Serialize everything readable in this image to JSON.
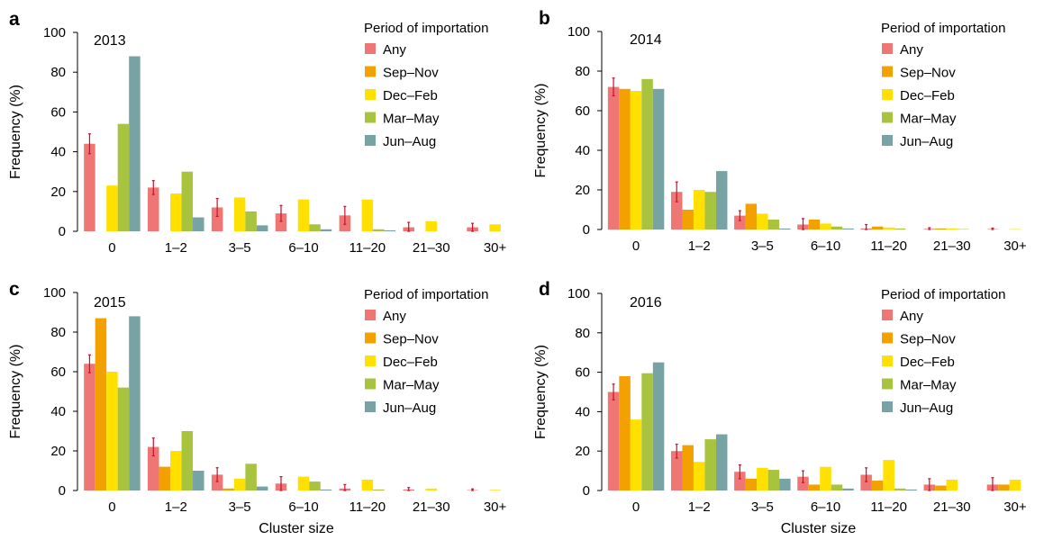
{
  "figure": {
    "shared": {
      "legend_title": "Period of importation",
      "series_names": [
        "Any",
        "Sep–Nov",
        "Dec–Feb",
        "Mar–May",
        "Jun–Aug"
      ],
      "series_colors": [
        "#ee7674",
        "#f2a100",
        "#ffe000",
        "#a8c43f",
        "#78a3a4"
      ],
      "error_color": "#c8102e",
      "ylabel": "Frequency (%)",
      "xlabel": "Cluster size",
      "categories": [
        "0",
        "1–2",
        "3–5",
        "6–10",
        "11–20",
        "21–30",
        "30+"
      ],
      "yticks": [
        "0",
        "20",
        "40",
        "60",
        "80",
        "100"
      ],
      "ylim": [
        0,
        100
      ]
    }
  },
  "chart_data": [
    {
      "type": "bar",
      "panel": "a",
      "year": "2013",
      "categories": [
        "0",
        "1–2",
        "3–5",
        "6–10",
        "11–20",
        "21–30",
        "30+"
      ],
      "ylabel": "Frequency (%)",
      "xlabel": "",
      "ylim": [
        0,
        100
      ],
      "legend_title": "Period of importation",
      "series": [
        {
          "name": "Any",
          "values": [
            44,
            22,
            12,
            9,
            8,
            2,
            2
          ],
          "error": [
            5,
            3.5,
            4.5,
            4,
            4.5,
            2.5,
            2
          ]
        },
        {
          "name": "Sep–Nov",
          "values": [
            0,
            0,
            0,
            0,
            0,
            0,
            0
          ]
        },
        {
          "name": "Dec–Feb",
          "values": [
            23,
            19,
            17,
            16,
            16,
            5,
            3.5
          ]
        },
        {
          "name": "Mar–May",
          "values": [
            54,
            30,
            10,
            3.5,
            1,
            0,
            0
          ]
        },
        {
          "name": "Jun–Aug",
          "values": [
            88,
            7,
            3,
            1,
            0.5,
            0,
            0
          ]
        }
      ]
    },
    {
      "type": "bar",
      "panel": "b",
      "year": "2014",
      "categories": [
        "0",
        "1–2",
        "3–5",
        "6–10",
        "11–20",
        "21–30",
        "30+"
      ],
      "ylabel": "Frequency (%)",
      "xlabel": "",
      "ylim": [
        0,
        100
      ],
      "legend_title": "Period of importation",
      "series": [
        {
          "name": "Any",
          "values": [
            72,
            19,
            7,
            2.5,
            0.5,
            0.3,
            0.2
          ],
          "error": [
            4.5,
            5,
            2.5,
            3,
            2,
            0.6,
            0.5
          ]
        },
        {
          "name": "Sep–Nov",
          "values": [
            71,
            10,
            13,
            5,
            1.5,
            0.5,
            0
          ]
        },
        {
          "name": "Dec–Feb",
          "values": [
            70,
            20,
            8,
            3,
            1,
            0.5,
            0.2
          ]
        },
        {
          "name": "Mar–May",
          "values": [
            76,
            19,
            5,
            1.5,
            0.5,
            0.2,
            0
          ]
        },
        {
          "name": "Jun–Aug",
          "values": [
            71,
            29.5,
            0.5,
            0.5,
            0,
            0,
            0
          ]
        }
      ]
    },
    {
      "type": "bar",
      "panel": "c",
      "year": "2015",
      "categories": [
        "0",
        "1–2",
        "3–5",
        "6–10",
        "11–20",
        "21–30",
        "30+"
      ],
      "ylabel": "Frequency (%)",
      "xlabel": "Cluster size",
      "ylim": [
        0,
        100
      ],
      "legend_title": "Period of importation",
      "series": [
        {
          "name": "Any",
          "values": [
            64,
            22,
            8,
            3.5,
            1,
            0.5,
            0.2
          ],
          "error": [
            4.5,
            4.5,
            3.5,
            3.5,
            2,
            1,
            0.6
          ]
        },
        {
          "name": "Sep–Nov",
          "values": [
            87,
            12,
            1,
            0,
            0,
            0,
            0
          ]
        },
        {
          "name": "Dec–Feb",
          "values": [
            60,
            20,
            6,
            7,
            5.5,
            1,
            0.3
          ]
        },
        {
          "name": "Mar–May",
          "values": [
            52,
            30,
            13.5,
            4.5,
            0.5,
            0,
            0
          ]
        },
        {
          "name": "Jun–Aug",
          "values": [
            88,
            10,
            2,
            0.5,
            0,
            0,
            0
          ]
        }
      ]
    },
    {
      "type": "bar",
      "panel": "d",
      "year": "2016",
      "categories": [
        "0",
        "1–2",
        "3–5",
        "6–10",
        "11–20",
        "21–30",
        "30+"
      ],
      "ylabel": "Frequency (%)",
      "xlabel": "Cluster size",
      "ylim": [
        0,
        100
      ],
      "legend_title": "Period of importation",
      "series": [
        {
          "name": "Any",
          "values": [
            50,
            20,
            9.5,
            7,
            8,
            3,
            3
          ],
          "error": [
            4,
            3.5,
            3.5,
            3,
            3.5,
            3,
            3.5
          ]
        },
        {
          "name": "Sep–Nov",
          "values": [
            58,
            23,
            6,
            3,
            5,
            2.5,
            3
          ]
        },
        {
          "name": "Dec–Feb",
          "values": [
            36,
            14.5,
            11.5,
            12,
            15.5,
            5.5,
            5.5
          ]
        },
        {
          "name": "Mar–May",
          "values": [
            59.5,
            26,
            10.5,
            3,
            1,
            0,
            0
          ]
        },
        {
          "name": "Jun–Aug",
          "values": [
            65,
            28.5,
            6,
            1,
            0.5,
            0,
            0
          ]
        }
      ]
    }
  ]
}
